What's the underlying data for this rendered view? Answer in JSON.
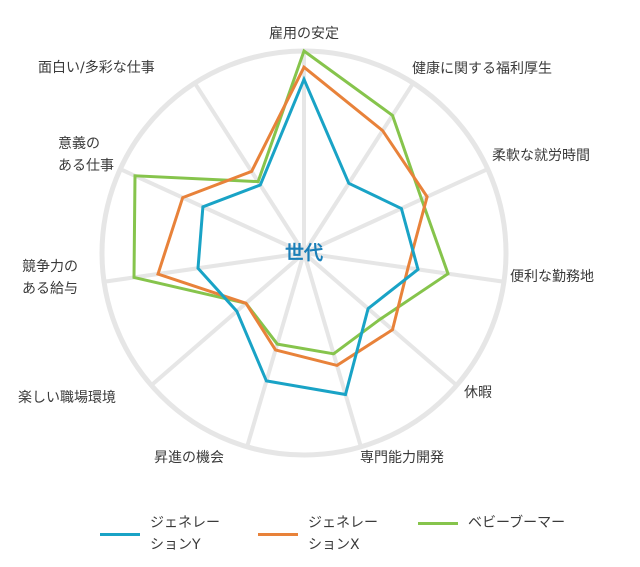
{
  "chart_data": {
    "type": "radar",
    "center_label": "世代",
    "axes": [
      "雇用の安定",
      "健康に関する福利厚生",
      "柔軟な就労時間",
      "便利な勤務地",
      "休暇",
      "専門能力開発",
      "昇進の機会",
      "楽しい職場環境",
      "競争力の\nある給与",
      "意義の\nある仕事",
      "面白い/多彩な仕事"
    ],
    "rlim": [
      0,
      1
    ],
    "grid": true,
    "legend_position": "bottom",
    "series": [
      {
        "name": "ジェネレー\nションY",
        "color": "#19a3c6",
        "values": [
          0.86,
          0.41,
          0.53,
          0.57,
          0.42,
          0.73,
          0.66,
          0.44,
          0.53,
          0.55,
          0.4
        ]
      },
      {
        "name": "ジェネレー\nションX",
        "color": "#e8823a",
        "values": [
          0.92,
          0.72,
          0.67,
          0.52,
          0.58,
          0.58,
          0.5,
          0.38,
          0.73,
          0.66,
          0.48
        ]
      },
      {
        "name": "ベビーブーマー",
        "color": "#86c44c",
        "values": [
          1.0,
          0.81,
          0.64,
          0.72,
          0.5,
          0.52,
          0.47,
          0.38,
          0.85,
          0.92,
          0.42
        ]
      }
    ]
  }
}
